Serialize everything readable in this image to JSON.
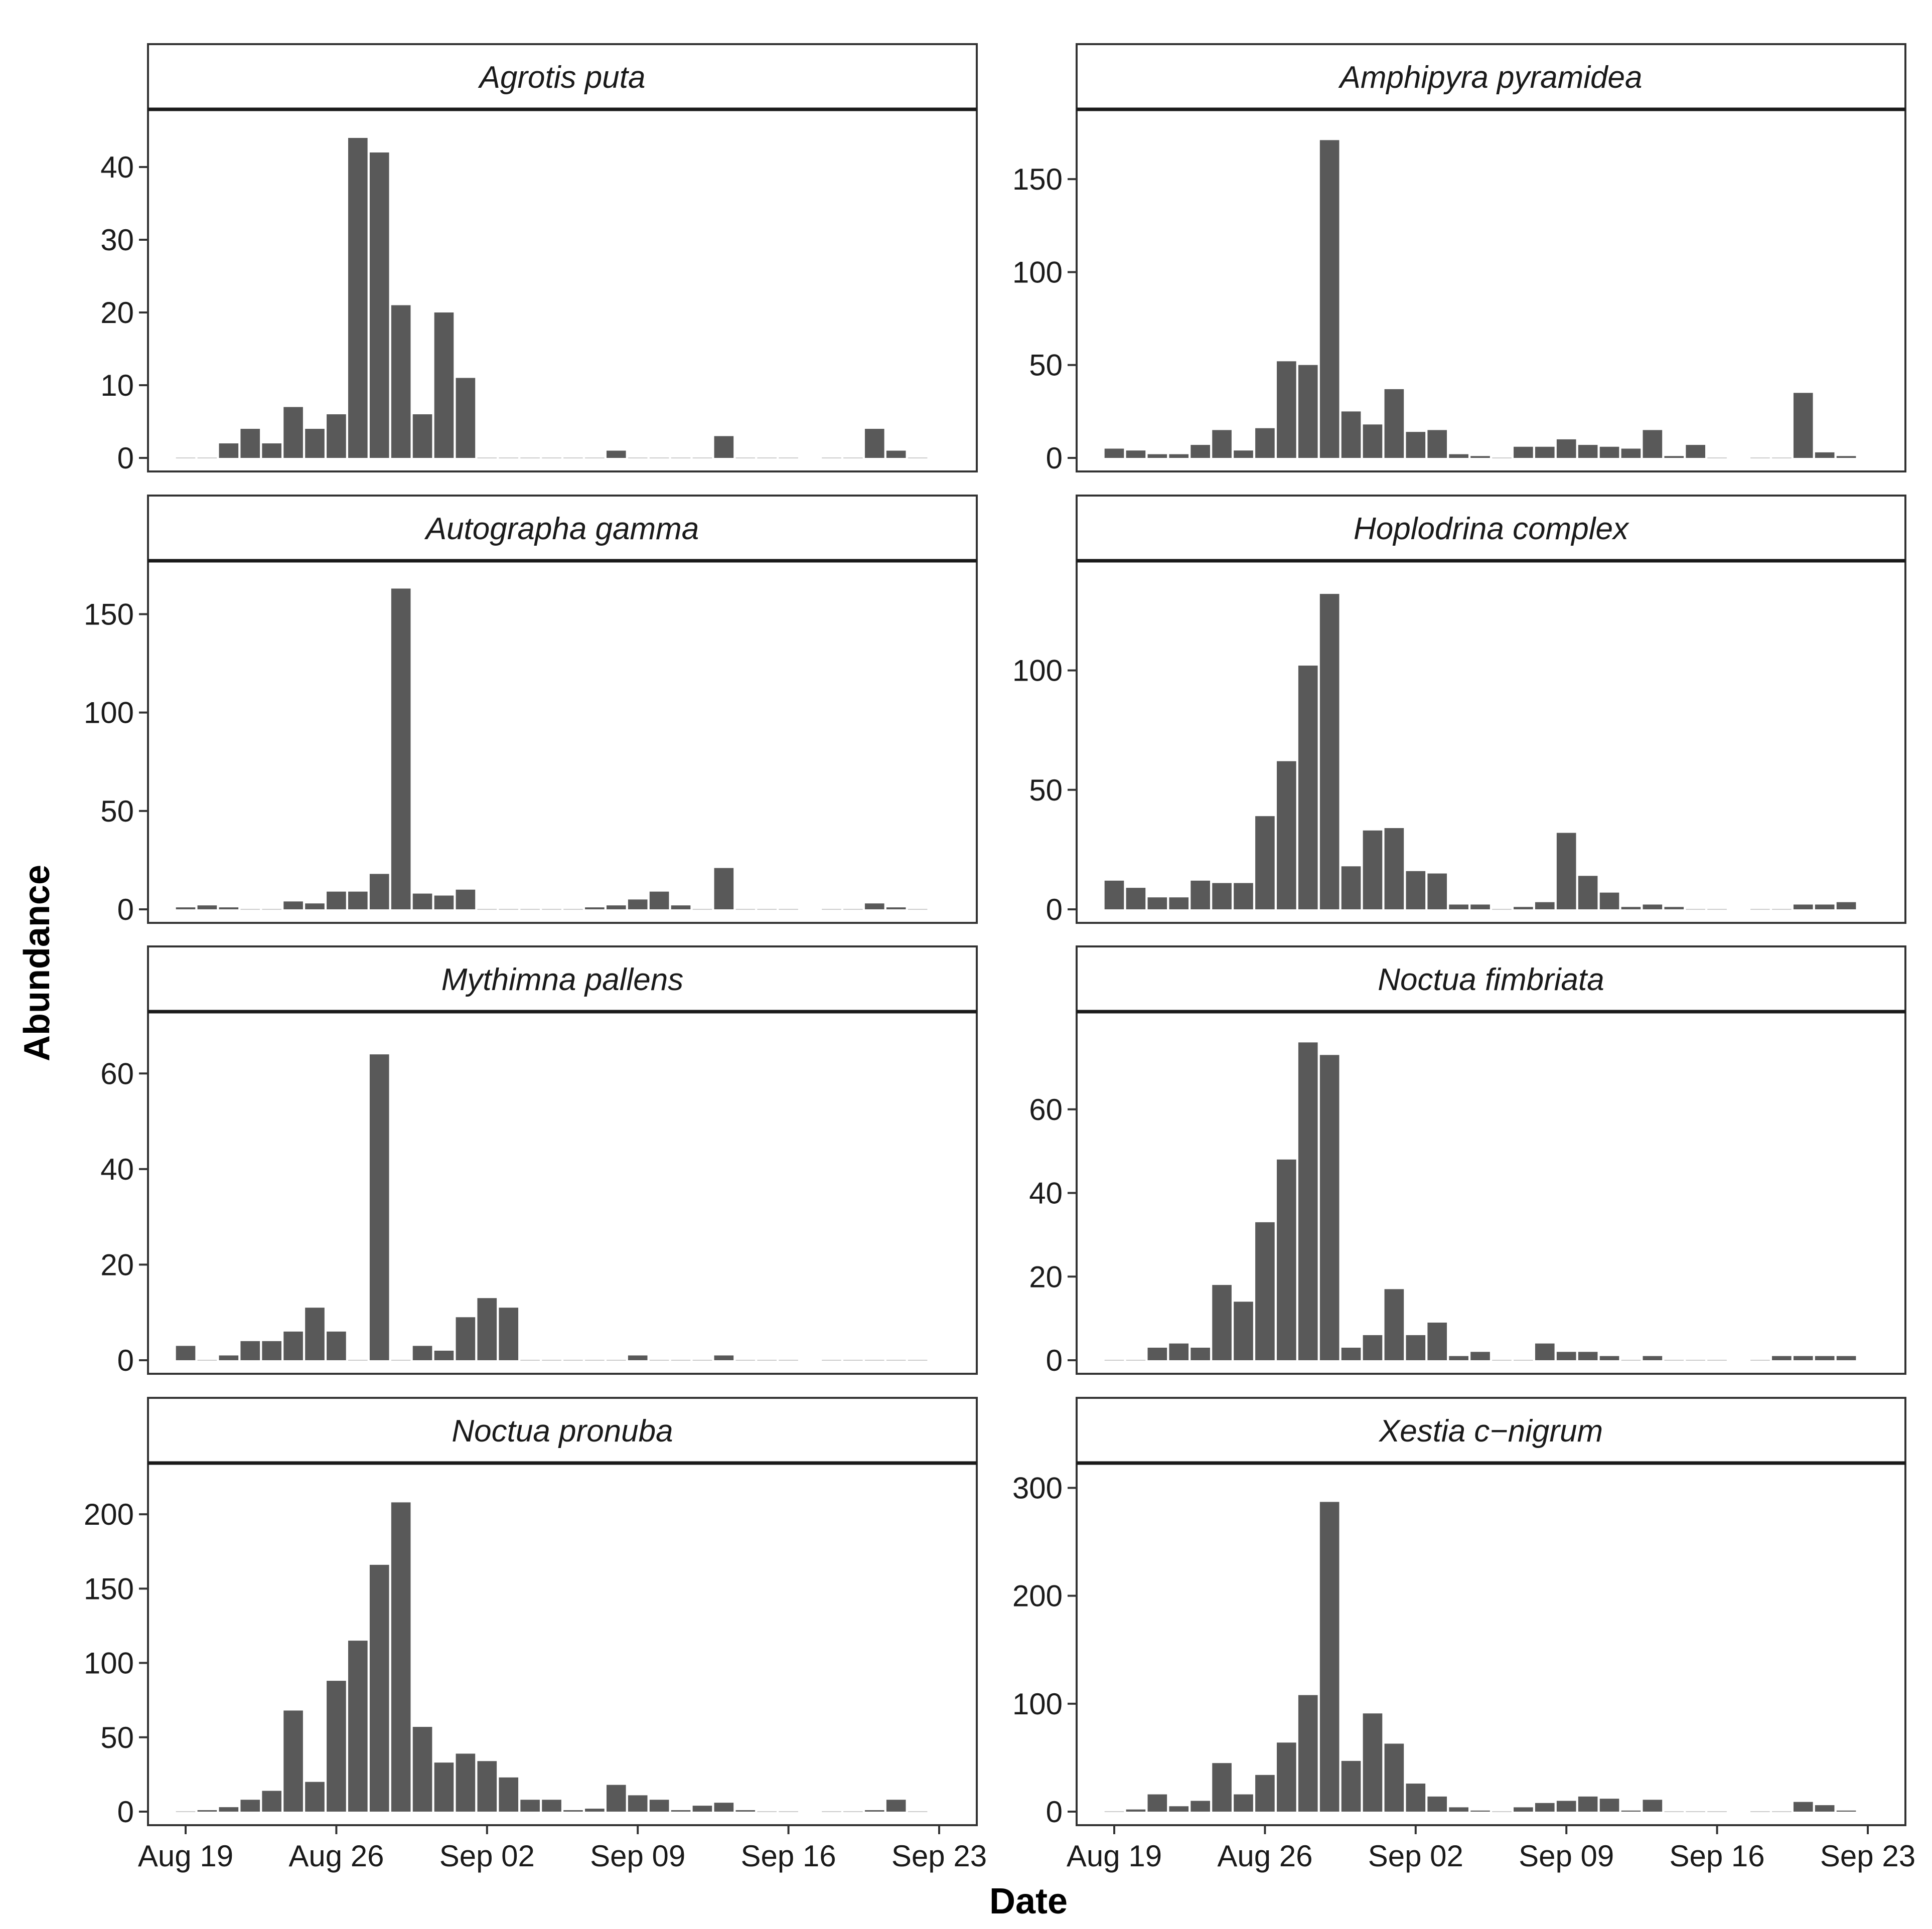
{
  "chart_data": {
    "type": "bar",
    "layout": "facet_wrap 4 rows x 2 columns",
    "xlabel": "Date",
    "ylabel": "Abundance",
    "x_domain": [
      "Aug 19",
      "Sep 23"
    ],
    "x_ticks": [
      {
        "label": "Aug 19",
        "day": 0
      },
      {
        "label": "Aug 26",
        "day": 7
      },
      {
        "label": "Sep 02",
        "day": 14
      },
      {
        "label": "Sep 09",
        "day": 21
      },
      {
        "label": "Sep 16",
        "day": 28
      },
      {
        "label": "Sep 23",
        "day": 35
      }
    ],
    "days": [
      "Aug 19",
      "Aug 20",
      "Aug 21",
      "Aug 22",
      "Aug 23",
      "Aug 24",
      "Aug 25",
      "Aug 26",
      "Aug 27",
      "Aug 28",
      "Aug 29",
      "Aug 30",
      "Aug 31",
      "Sep 01",
      "Sep 02",
      "Sep 03",
      "Sep 04",
      "Sep 05",
      "Sep 06",
      "Sep 07",
      "Sep 08",
      "Sep 09",
      "Sep 10",
      "Sep 11",
      "Sep 12",
      "Sep 13",
      "Sep 14",
      "Sep 15",
      "Sep 16",
      "Sep 17",
      "Sep 18",
      "Sep 19",
      "Sep 20",
      "Sep 21",
      "Sep 22",
      "Sep 23"
    ],
    "bar_color": "#595959",
    "panels": [
      {
        "species": "Agrotis puta",
        "ylim": [
          0,
          46
        ],
        "yticks": [
          0,
          10,
          20,
          30,
          40
        ],
        "values": [
          0,
          0,
          2,
          4,
          2,
          7,
          4,
          6,
          44,
          42,
          21,
          6,
          20,
          11,
          0,
          0,
          0,
          0,
          0,
          0,
          1,
          0,
          0,
          0,
          0,
          3,
          0,
          0,
          0,
          null,
          0,
          0,
          4,
          1,
          0,
          null
        ]
      },
      {
        "species": "Amphipyra pyramidea",
        "ylim": [
          0,
          180
        ],
        "yticks": [
          0,
          50,
          100,
          150
        ],
        "values": [
          5,
          4,
          2,
          2,
          7,
          15,
          4,
          16,
          52,
          50,
          171,
          25,
          18,
          37,
          14,
          15,
          2,
          1,
          0,
          6,
          6,
          10,
          7,
          6,
          5,
          15,
          1,
          7,
          0,
          null,
          0,
          0,
          35,
          3,
          1,
          null
        ]
      },
      {
        "species": "Autographa gamma",
        "ylim": [
          0,
          170
        ],
        "yticks": [
          0,
          50,
          100,
          150
        ],
        "values": [
          1,
          2,
          1,
          0,
          0,
          4,
          3,
          9,
          9,
          18,
          163,
          8,
          7,
          10,
          0,
          0,
          0,
          0,
          0,
          1,
          2,
          5,
          9,
          2,
          0,
          21,
          0,
          0,
          0,
          null,
          0,
          0,
          3,
          1,
          0,
          null
        ]
      },
      {
        "species": "Hoplodrina complex",
        "ylim": [
          0,
          140
        ],
        "yticks": [
          0,
          50,
          100
        ],
        "values": [
          12,
          9,
          5,
          5,
          12,
          11,
          11,
          39,
          62,
          102,
          132,
          18,
          33,
          34,
          16,
          15,
          2,
          2,
          0,
          1,
          3,
          32,
          14,
          7,
          1,
          2,
          1,
          0,
          0,
          null,
          0,
          0,
          2,
          2,
          3,
          null
        ]
      },
      {
        "species": "Mythimna pallens",
        "ylim": [
          0,
          70
        ],
        "yticks": [
          0,
          20,
          40,
          60
        ],
        "values": [
          3,
          0,
          1,
          4,
          4,
          6,
          11,
          6,
          0,
          64,
          0,
          3,
          2,
          9,
          13,
          11,
          0,
          0,
          0,
          0,
          0,
          1,
          0,
          0,
          0,
          1,
          0,
          0,
          0,
          null,
          0,
          0,
          0,
          0,
          0,
          null
        ]
      },
      {
        "species": "Noctua fimbriata",
        "ylim": [
          0,
          80
        ],
        "yticks": [
          0,
          20,
          40,
          60
        ],
        "values": [
          0,
          0,
          3,
          4,
          3,
          18,
          14,
          33,
          48,
          76,
          73,
          3,
          6,
          17,
          6,
          9,
          1,
          2,
          0,
          0,
          4,
          2,
          2,
          1,
          0,
          1,
          0,
          0,
          0,
          null,
          0,
          1,
          1,
          1,
          1,
          null
        ]
      },
      {
        "species": "Noctua pronuba",
        "ylim": [
          0,
          225
        ],
        "yticks": [
          0,
          50,
          100,
          150,
          200
        ],
        "values": [
          0,
          1,
          3,
          8,
          14,
          68,
          20,
          88,
          115,
          166,
          208,
          57,
          33,
          39,
          34,
          23,
          8,
          8,
          1,
          2,
          18,
          11,
          8,
          1,
          4,
          6,
          1,
          0,
          0,
          null,
          0,
          0,
          1,
          8,
          0,
          null
        ]
      },
      {
        "species": "Xestia c−nigrum",
        "ylim": [
          0,
          310
        ],
        "yticks": [
          0,
          100,
          200,
          300
        ],
        "values": [
          0,
          2,
          16,
          5,
          10,
          45,
          16,
          34,
          64,
          108,
          287,
          47,
          91,
          63,
          26,
          14,
          4,
          1,
          0,
          4,
          8,
          10,
          14,
          12,
          1,
          11,
          0,
          0,
          0,
          null,
          0,
          0,
          9,
          6,
          1,
          null
        ]
      }
    ]
  }
}
